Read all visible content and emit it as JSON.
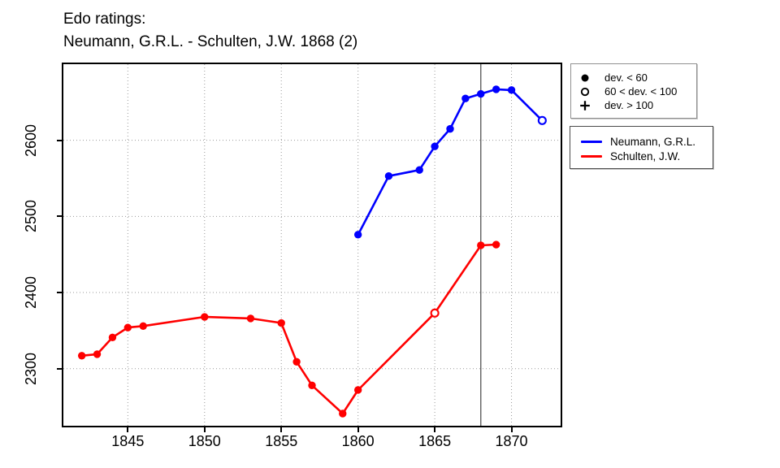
{
  "title": {
    "line1": "Edo ratings:",
    "line2": "Neumann, G.R.L. - Schulten, J.W. 1868 (2)"
  },
  "chart_data": {
    "type": "line",
    "title": "Edo ratings: Neumann, G.R.L. - Schulten, J.W. 1868 (2)",
    "xlabel": "",
    "ylabel": "",
    "xlim": [
      1840.8,
      1873.2
    ],
    "ylim": [
      2225,
      2700
    ],
    "x_ticks": [
      1845,
      1850,
      1855,
      1860,
      1865,
      1870
    ],
    "y_ticks": [
      2300,
      2400,
      2500,
      2600
    ],
    "grid": "dotted",
    "grid_color": "#999999",
    "event_line": {
      "x": 1868,
      "color": "#444444"
    },
    "legend_position": "right",
    "marker_legend": {
      "items": [
        {
          "symbol": "filled-circle",
          "label": "dev. < 60"
        },
        {
          "symbol": "open-circle",
          "label": "60 < dev. < 100"
        },
        {
          "symbol": "plus",
          "label": "dev. > 100"
        }
      ]
    },
    "series": [
      {
        "name": "Neumann, G.R.L.",
        "color": "#0000ff",
        "points": [
          {
            "year": 1860,
            "rating": 2476,
            "marker": "filled"
          },
          {
            "year": 1862,
            "rating": 2553,
            "marker": "filled"
          },
          {
            "year": 1864,
            "rating": 2561,
            "marker": "filled"
          },
          {
            "year": 1865,
            "rating": 2592,
            "marker": "filled"
          },
          {
            "year": 1866,
            "rating": 2615,
            "marker": "filled"
          },
          {
            "year": 1867,
            "rating": 2655,
            "marker": "filled"
          },
          {
            "year": 1868,
            "rating": 2661,
            "marker": "filled"
          },
          {
            "year": 1869,
            "rating": 2667,
            "marker": "filled"
          },
          {
            "year": 1870,
            "rating": 2666,
            "marker": "filled"
          },
          {
            "year": 1872,
            "rating": 2626,
            "marker": "open"
          }
        ]
      },
      {
        "name": "Schulten, J.W.",
        "color": "#ff0000",
        "points": [
          {
            "year": 1842,
            "rating": 2317,
            "marker": "filled"
          },
          {
            "year": 1843,
            "rating": 2319,
            "marker": "filled"
          },
          {
            "year": 1844,
            "rating": 2341,
            "marker": "filled"
          },
          {
            "year": 1845,
            "rating": 2354,
            "marker": "filled"
          },
          {
            "year": 1846,
            "rating": 2356,
            "marker": "filled"
          },
          {
            "year": 1850,
            "rating": 2368,
            "marker": "filled"
          },
          {
            "year": 1853,
            "rating": 2366,
            "marker": "filled"
          },
          {
            "year": 1855,
            "rating": 2360,
            "marker": "filled"
          },
          {
            "year": 1856,
            "rating": 2309,
            "marker": "filled"
          },
          {
            "year": 1857,
            "rating": 2278,
            "marker": "filled"
          },
          {
            "year": 1859,
            "rating": 2241,
            "marker": "filled"
          },
          {
            "year": 1860,
            "rating": 2272,
            "marker": "filled"
          },
          {
            "year": 1865,
            "rating": 2373,
            "marker": "open"
          },
          {
            "year": 1868,
            "rating": 2462,
            "marker": "filled"
          },
          {
            "year": 1869,
            "rating": 2463,
            "marker": "filled"
          }
        ]
      }
    ]
  }
}
